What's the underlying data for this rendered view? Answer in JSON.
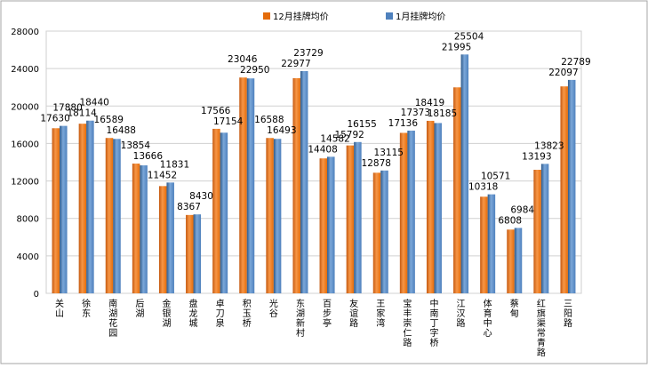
{
  "chart_data": {
    "type": "bar",
    "title": "",
    "xlabel": "",
    "ylabel": "",
    "ylim": [
      0,
      28000
    ],
    "yticks": [
      0,
      4000,
      8000,
      12000,
      16000,
      20000,
      24000,
      28000
    ],
    "grid": "horizontal",
    "legend_position": "top",
    "categories": [
      "关山",
      "徐东",
      "南湖花园",
      "后湖",
      "金银湖",
      "盘龙城",
      "卓刀泉",
      "积玉桥",
      "光谷",
      "东湖新村",
      "百步亭",
      "友谊路",
      "王家湾",
      "宝丰崇仁路",
      "中南丁字桥",
      "江汉路",
      "体育中心",
      "蔡甸",
      "红旗渠常青路",
      "三阳路"
    ],
    "series": [
      {
        "name": "12月挂牌均价",
        "color": "#E46C0A",
        "values": [
          17630,
          18114,
          16589,
          13854,
          11452,
          8367,
          17566,
          23046,
          16588,
          22977,
          14408,
          15792,
          12878,
          17136,
          18419,
          21995,
          10318,
          6808,
          13193,
          22097
        ]
      },
      {
        "name": "1月挂牌均价",
        "color": "#4F81BD",
        "values": [
          17880,
          18440,
          16488,
          13666,
          11831,
          8430,
          17154,
          22950,
          16493,
          23729,
          14582,
          16155,
          13115,
          17373,
          18185,
          25504,
          10571,
          6984,
          13823,
          22789
        ]
      }
    ]
  }
}
